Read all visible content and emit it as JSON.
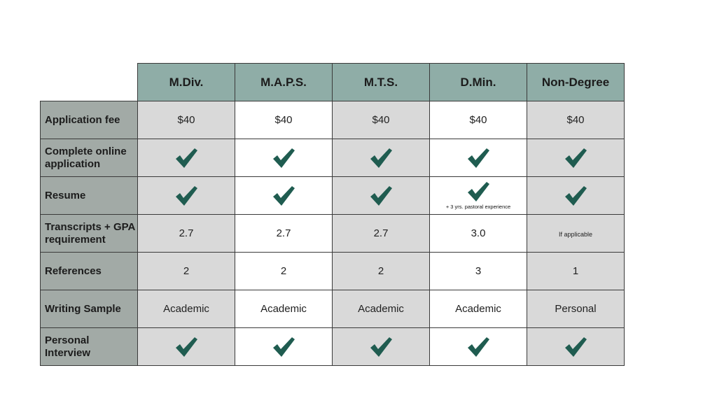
{
  "table": {
    "columns": [
      "M.Div.",
      "M.A.P.S.",
      "M.T.S.",
      "D.Min.",
      "Non-Degree"
    ],
    "rows": [
      {
        "label": "Application fee",
        "cells": [
          {
            "text": "$40"
          },
          {
            "text": "$40"
          },
          {
            "text": "$40"
          },
          {
            "text": "$40"
          },
          {
            "text": "$40"
          }
        ]
      },
      {
        "label": "Complete online application",
        "cells": [
          {
            "check": true
          },
          {
            "check": true
          },
          {
            "check": true
          },
          {
            "check": true
          },
          {
            "check": true
          }
        ]
      },
      {
        "label": "Resume",
        "cells": [
          {
            "check": true
          },
          {
            "check": true
          },
          {
            "check": true
          },
          {
            "check": true,
            "note": "+ 3 yrs. pastoral experience"
          },
          {
            "check": true
          }
        ]
      },
      {
        "label": "Transcripts + GPA requirement",
        "cells": [
          {
            "text": "2.7"
          },
          {
            "text": "2.7"
          },
          {
            "text": "2.7"
          },
          {
            "text": "3.0"
          },
          {
            "text": "If applicable",
            "small": true
          }
        ]
      },
      {
        "label": "References",
        "cells": [
          {
            "text": "2"
          },
          {
            "text": "2"
          },
          {
            "text": "2"
          },
          {
            "text": "3"
          },
          {
            "text": "1"
          }
        ]
      },
      {
        "label": "Writing Sample",
        "cells": [
          {
            "text": "Academic"
          },
          {
            "text": "Academic"
          },
          {
            "text": "Academic"
          },
          {
            "text": "Academic"
          },
          {
            "text": "Personal"
          }
        ]
      },
      {
        "label": "Personal Interview",
        "cells": [
          {
            "check": true
          },
          {
            "check": true
          },
          {
            "check": true
          },
          {
            "check": true
          },
          {
            "check": true
          }
        ]
      }
    ],
    "check_icon": "checkmark-icon",
    "colors": {
      "header_bg": "#8fada7",
      "row_label_bg": "#a2aaa6",
      "shaded_cell": "#d9d9d9",
      "check": "#1f5c50"
    }
  }
}
